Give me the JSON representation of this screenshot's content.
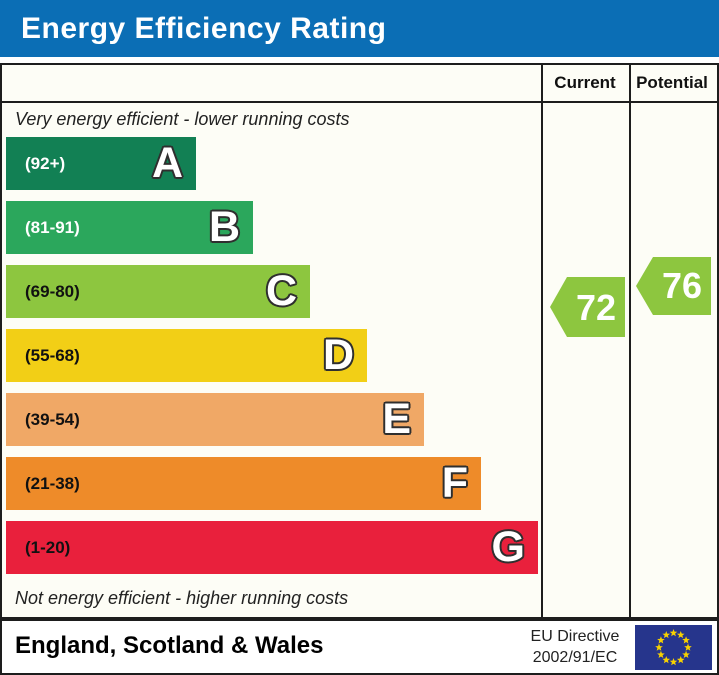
{
  "title": "Energy Efficiency Rating",
  "columns": {
    "current": "Current",
    "potential": "Potential"
  },
  "top_note": "Very energy efficient - lower running costs",
  "bottom_note": "Not energy efficient - higher running costs",
  "footer": {
    "region": "England, Scotland & Wales",
    "directive_line1": "EU Directive",
    "directive_line2": "2002/91/EC",
    "flag_icon": "eu-flag-icon",
    "flag_bg": "#26358c",
    "flag_star": "#f8d200"
  },
  "colors": {
    "titlebar_blue": "#0b6eb5",
    "chart_background": "#fdfdf6",
    "border_black": "#1d1d1d"
  },
  "chart_data": {
    "type": "bar",
    "title": "Energy Efficiency Rating",
    "categories": [
      "A",
      "B",
      "C",
      "D",
      "E",
      "F",
      "G"
    ],
    "bands": [
      {
        "letter": "A",
        "range_label": "(92+)",
        "min": 92,
        "max": 100,
        "color": "#128054",
        "label_color": "#ffffff"
      },
      {
        "letter": "B",
        "range_label": "(81-91)",
        "min": 81,
        "max": 91,
        "color": "#2ba75c",
        "label_color": "#ffffff"
      },
      {
        "letter": "C",
        "range_label": "(69-80)",
        "min": 69,
        "max": 80,
        "color": "#8dc63f",
        "label_color": "#111111"
      },
      {
        "letter": "D",
        "range_label": "(55-68)",
        "min": 55,
        "max": 68,
        "color": "#f2cf16",
        "label_color": "#111111"
      },
      {
        "letter": "E",
        "range_label": "(39-54)",
        "min": 39,
        "max": 54,
        "color": "#f0a866",
        "label_color": "#111111"
      },
      {
        "letter": "F",
        "range_label": "(21-38)",
        "min": 21,
        "max": 38,
        "color": "#ee8b29",
        "label_color": "#111111"
      },
      {
        "letter": "G",
        "range_label": "(1-20)",
        "min": 1,
        "max": 20,
        "color": "#e9203c",
        "label_color": "#111111"
      }
    ],
    "markers": {
      "current": {
        "value": 72,
        "band": "C",
        "color": "#8dc63f"
      },
      "potential": {
        "value": 76,
        "band": "C",
        "color": "#8dc63f"
      }
    },
    "layout_hints": {
      "bar_direction": "horizontal",
      "bar_length_increases_from_A_to_G": true,
      "legend": "none"
    }
  }
}
